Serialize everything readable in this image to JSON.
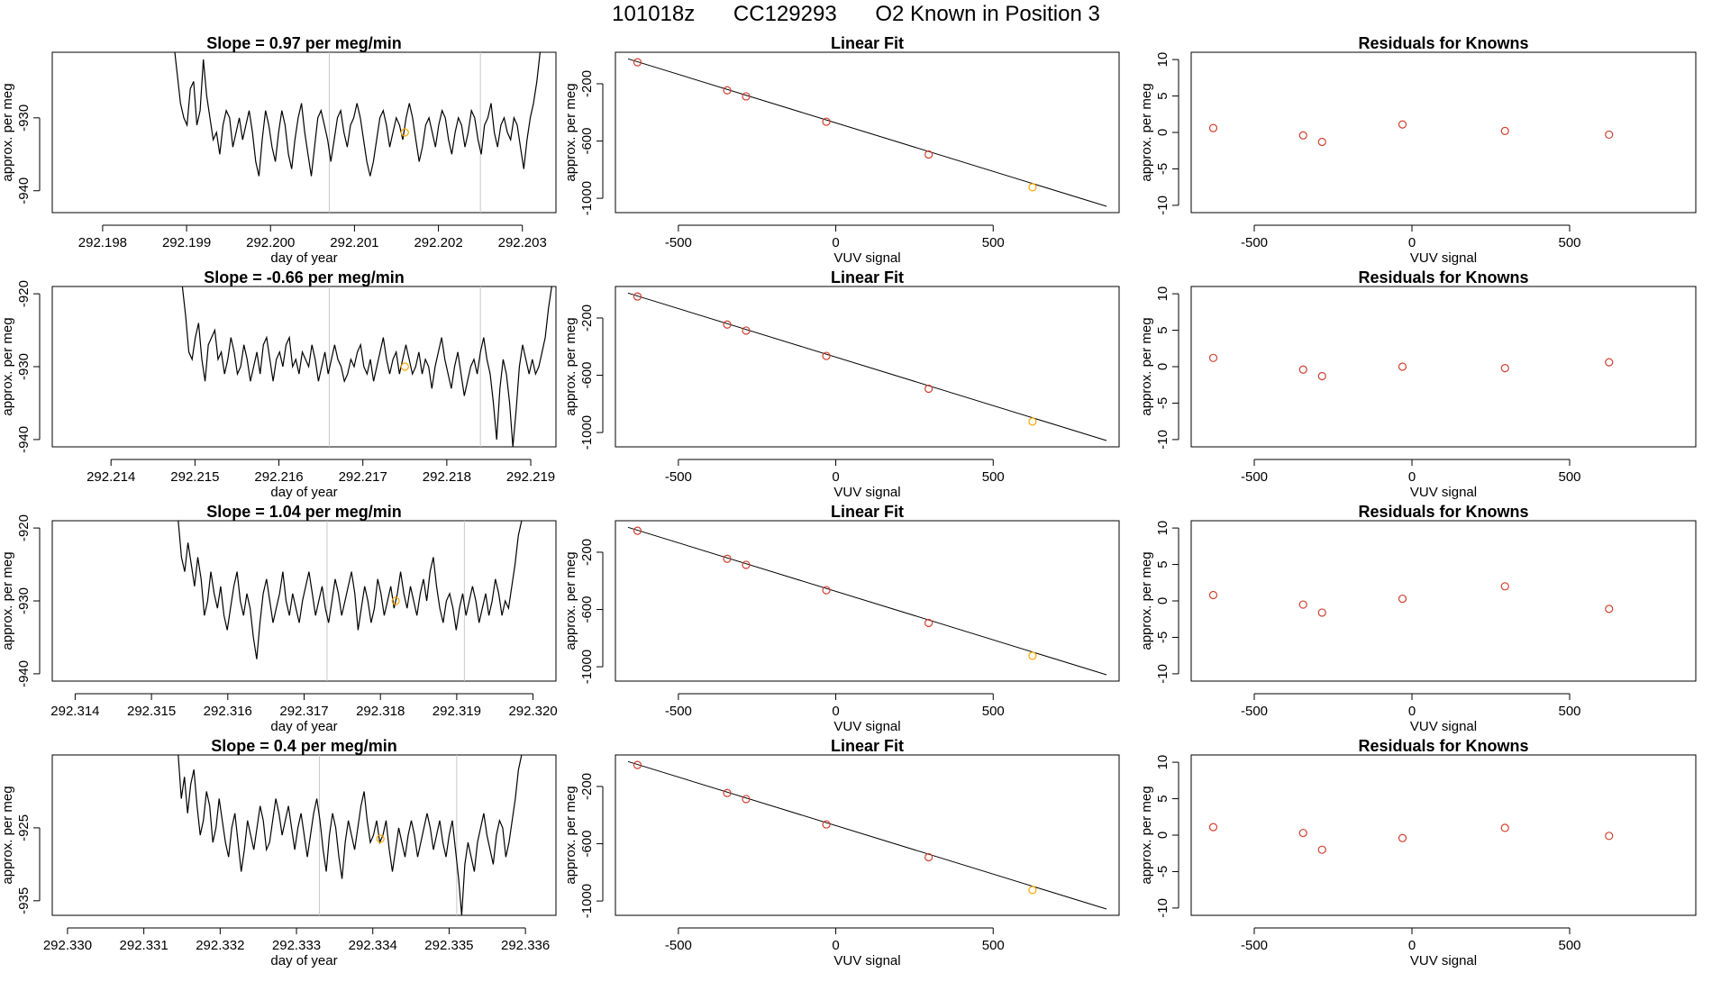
{
  "header": {
    "part1": "101018z",
    "part2": "CC129293",
    "part3": "O2 Known in Position  3"
  },
  "colors": {
    "trace": "#000000",
    "grid": "#c8c8c8",
    "highlight": "#ffa500",
    "point": "#d0402f",
    "axis": "#000000"
  },
  "chart_data": [
    {
      "type": "line",
      "panel": "timeseries",
      "row": 0,
      "title": "Slope =  0.97  per meg/min",
      "xlabel": "day of year",
      "ylabel": "approx. per meg",
      "xlim": [
        292.1974,
        292.2034
      ],
      "ylim": [
        -943,
        -921
      ],
      "xticks": [
        "292.198",
        "292.199",
        "292.200",
        "292.201",
        "292.202",
        "292.203"
      ],
      "xtick_values": [
        292.198,
        292.199,
        292.2,
        292.201,
        292.202,
        292.203
      ],
      "yticks": [
        "-930",
        "-940"
      ],
      "ytick_values": [
        -930,
        -940
      ],
      "vlines": [
        292.2007,
        292.2025
      ],
      "highlight_point": {
        "x": 292.2016,
        "y": -932
      },
      "trace_x_start": 292.19885,
      "trace_x_end": 292.20325,
      "trace_y": [
        -920,
        -924,
        -928,
        -930,
        -931,
        -926,
        -925,
        -931,
        -929,
        -922,
        -927,
        -930,
        -933,
        -932,
        -935,
        -931,
        -929,
        -930,
        -934,
        -932,
        -930,
        -933,
        -931,
        -929,
        -932,
        -936,
        -938,
        -933,
        -929,
        -931,
        -934,
        -936,
        -932,
        -929,
        -931,
        -935,
        -937,
        -933,
        -930,
        -928,
        -932,
        -935,
        -938,
        -934,
        -930,
        -929,
        -931,
        -933,
        -936,
        -933,
        -930,
        -929,
        -932,
        -934,
        -931,
        -930,
        -928,
        -930,
        -933,
        -936,
        -938,
        -936,
        -933,
        -930,
        -929,
        -931,
        -934,
        -932,
        -930,
        -931,
        -933,
        -930,
        -928,
        -930,
        -933,
        -936,
        -934,
        -931,
        -930,
        -932,
        -934,
        -931,
        -929,
        -930,
        -933,
        -935,
        -932,
        -930,
        -931,
        -934,
        -932,
        -929,
        -930,
        -933,
        -935,
        -931,
        -930,
        -928,
        -932,
        -934,
        -931,
        -930,
        -932,
        -933,
        -930,
        -931,
        -934,
        -937,
        -933,
        -930,
        -928,
        -925,
        -921,
        -920
      ]
    },
    {
      "type": "scatter",
      "panel": "fit",
      "row": 0,
      "title": "Linear Fit",
      "xlabel": "VUV signal",
      "ylabel": "approx. per meg",
      "xlim": [
        -700,
        900
      ],
      "ylim": [
        -1100,
        20
      ],
      "xticks": [
        "-500",
        "0",
        "500"
      ],
      "xtick_values": [
        -500,
        0,
        500
      ],
      "yticks": [
        "-200",
        "-600",
        "-1000"
      ],
      "ytick_values": [
        -200,
        -600,
        -1000
      ],
      "line": {
        "x": [
          -660,
          860
        ],
        "y": [
          -26,
          -1056
        ]
      },
      "points": [
        {
          "x": -630,
          "y": -50
        },
        {
          "x": -345,
          "y": -246
        },
        {
          "x": -285,
          "y": -288
        },
        {
          "x": -30,
          "y": -465
        },
        {
          "x": 295,
          "y": -694
        },
        {
          "x": 625,
          "y": -923,
          "highlight": true
        }
      ]
    },
    {
      "type": "scatter",
      "panel": "residuals",
      "row": 0,
      "title": "Residuals for Knowns",
      "xlabel": "VUV signal",
      "ylabel": "approx. per meg",
      "xlim": [
        -700,
        900
      ],
      "ylim": [
        -11,
        11
      ],
      "xticks": [
        "-500",
        "0",
        "500"
      ],
      "xtick_values": [
        -500,
        0,
        500
      ],
      "yticks": [
        "10",
        "5",
        "0",
        "-5",
        "-10"
      ],
      "ytick_values": [
        10,
        5,
        0,
        -5,
        -10
      ],
      "points": [
        {
          "x": -630,
          "y": 0.6
        },
        {
          "x": -345,
          "y": -0.4
        },
        {
          "x": -285,
          "y": -1.3
        },
        {
          "x": -30,
          "y": 1.1
        },
        {
          "x": 295,
          "y": 0.2
        },
        {
          "x": 625,
          "y": -0.3
        }
      ]
    },
    {
      "type": "line",
      "panel": "timeseries",
      "row": 1,
      "title": "Slope =  -0.66  per meg/min",
      "xlabel": "day of year",
      "ylabel": "approx. per meg",
      "xlim": [
        292.2133,
        292.2193
      ],
      "ylim": [
        -941,
        -919
      ],
      "xticks": [
        "292.214",
        "292.215",
        "292.216",
        "292.217",
        "292.218",
        "292.219"
      ],
      "xtick_values": [
        292.214,
        292.215,
        292.216,
        292.217,
        292.218,
        292.219
      ],
      "yticks": [
        "-920",
        "-930",
        "-940"
      ],
      "ytick_values": [
        -920,
        -930,
        -940
      ],
      "vlines": [
        292.2166,
        292.2184
      ],
      "highlight_point": {
        "x": 292.2175,
        "y": -930
      },
      "trace_x_start": 292.21485,
      "trace_x_end": 292.21925,
      "trace_y": [
        -919,
        -923,
        -928,
        -929,
        -926,
        -924,
        -929,
        -932,
        -927,
        -926,
        -925,
        -929,
        -928,
        -931,
        -929,
        -926,
        -928,
        -931,
        -930,
        -927,
        -929,
        -932,
        -930,
        -928,
        -931,
        -927,
        -926,
        -929,
        -932,
        -929,
        -928,
        -930,
        -927,
        -926,
        -930,
        -929,
        -931,
        -928,
        -929,
        -930,
        -927,
        -929,
        -932,
        -930,
        -928,
        -931,
        -929,
        -927,
        -929,
        -930,
        -932,
        -931,
        -929,
        -930,
        -928,
        -927,
        -930,
        -931,
        -929,
        -932,
        -930,
        -928,
        -926,
        -929,
        -931,
        -929,
        -928,
        -931,
        -929,
        -927,
        -929,
        -931,
        -930,
        -928,
        -931,
        -929,
        -930,
        -933,
        -930,
        -928,
        -926,
        -929,
        -931,
        -933,
        -930,
        -928,
        -931,
        -934,
        -932,
        -930,
        -929,
        -931,
        -928,
        -926,
        -929,
        -931,
        -935,
        -940,
        -933,
        -929,
        -931,
        -935,
        -941,
        -936,
        -930,
        -927,
        -929,
        -931,
        -929,
        -931,
        -930,
        -928,
        -926,
        -922,
        -919
      ]
    },
    {
      "type": "scatter",
      "panel": "fit",
      "row": 1,
      "title": "Linear Fit",
      "xlabel": "VUV signal",
      "ylabel": "approx. per meg",
      "xlim": [
        -700,
        900
      ],
      "ylim": [
        -1100,
        20
      ],
      "xticks": [
        "-500",
        "0",
        "500"
      ],
      "xtick_values": [
        -500,
        0,
        500
      ],
      "yticks": [
        "-200",
        "-600",
        "-1000"
      ],
      "ytick_values": [
        -200,
        -600,
        -1000
      ],
      "line": {
        "x": [
          -660,
          860
        ],
        "y": [
          -26,
          -1056
        ]
      },
      "points": [
        {
          "x": -630,
          "y": -50
        },
        {
          "x": -345,
          "y": -246
        },
        {
          "x": -285,
          "y": -288
        },
        {
          "x": -30,
          "y": -465
        },
        {
          "x": 295,
          "y": -694
        },
        {
          "x": 625,
          "y": -923,
          "highlight": true
        }
      ]
    },
    {
      "type": "scatter",
      "panel": "residuals",
      "row": 1,
      "title": "Residuals for Knowns",
      "xlabel": "VUV signal",
      "ylabel": "approx. per meg",
      "xlim": [
        -700,
        900
      ],
      "ylim": [
        -11,
        11
      ],
      "xticks": [
        "-500",
        "0",
        "500"
      ],
      "xtick_values": [
        -500,
        0,
        500
      ],
      "yticks": [
        "10",
        "5",
        "0",
        "-5",
        "-10"
      ],
      "ytick_values": [
        10,
        5,
        0,
        -5,
        -10
      ],
      "points": [
        {
          "x": -630,
          "y": 1.2
        },
        {
          "x": -345,
          "y": -0.4
        },
        {
          "x": -285,
          "y": -1.3
        },
        {
          "x": -30,
          "y": 0.0
        },
        {
          "x": 295,
          "y": -0.2
        },
        {
          "x": 625,
          "y": 0.6
        }
      ]
    },
    {
      "type": "line",
      "panel": "timeseries",
      "row": 2,
      "title": "Slope =  1.04  per meg/min",
      "xlabel": "day of year",
      "ylabel": "approx. per meg",
      "xlim": [
        292.3137,
        292.3203
      ],
      "ylim": [
        -941,
        -919
      ],
      "xticks": [
        "292.314",
        "292.315",
        "292.316",
        "292.317",
        "292.318",
        "292.319",
        "292.320"
      ],
      "xtick_values": [
        292.314,
        292.315,
        292.316,
        292.317,
        292.318,
        292.319,
        292.32
      ],
      "yticks": [
        "-920",
        "-930",
        "-940"
      ],
      "ytick_values": [
        -920,
        -930,
        -940
      ],
      "vlines": [
        292.3173,
        292.3191
      ],
      "highlight_point": {
        "x": 292.3182,
        "y": -930
      },
      "trace_x_start": 292.31535,
      "trace_x_end": 292.31985,
      "trace_y": [
        -919,
        -924,
        -926,
        -922,
        -925,
        -928,
        -924,
        -927,
        -932,
        -930,
        -926,
        -929,
        -931,
        -928,
        -932,
        -934,
        -931,
        -928,
        -926,
        -930,
        -932,
        -929,
        -931,
        -935,
        -938,
        -933,
        -929,
        -927,
        -930,
        -933,
        -931,
        -929,
        -926,
        -930,
        -932,
        -929,
        -931,
        -933,
        -930,
        -928,
        -926,
        -929,
        -932,
        -930,
        -928,
        -931,
        -933,
        -930,
        -927,
        -929,
        -932,
        -930,
        -928,
        -926,
        -929,
        -934,
        -931,
        -928,
        -930,
        -933,
        -931,
        -927,
        -929,
        -932,
        -930,
        -928,
        -931,
        -929,
        -926,
        -929,
        -931,
        -928,
        -930,
        -932,
        -929,
        -927,
        -930,
        -926,
        -924,
        -928,
        -931,
        -933,
        -930,
        -929,
        -931,
        -934,
        -931,
        -929,
        -932,
        -930,
        -928,
        -930,
        -933,
        -931,
        -929,
        -932,
        -930,
        -927,
        -929,
        -932,
        -930,
        -931,
        -928,
        -925,
        -921,
        -919
      ]
    },
    {
      "type": "scatter",
      "panel": "fit",
      "row": 2,
      "title": "Linear Fit",
      "xlabel": "VUV signal",
      "ylabel": "approx. per meg",
      "xlim": [
        -700,
        900
      ],
      "ylim": [
        -1100,
        20
      ],
      "xticks": [
        "-500",
        "0",
        "500"
      ],
      "xtick_values": [
        -500,
        0,
        500
      ],
      "yticks": [
        "-200",
        "-600",
        "-1000"
      ],
      "ytick_values": [
        -200,
        -600,
        -1000
      ],
      "line": {
        "x": [
          -660,
          860
        ],
        "y": [
          -26,
          -1056
        ]
      },
      "points": [
        {
          "x": -630,
          "y": -50
        },
        {
          "x": -345,
          "y": -246
        },
        {
          "x": -285,
          "y": -288
        },
        {
          "x": -30,
          "y": -465
        },
        {
          "x": 295,
          "y": -694
        },
        {
          "x": 625,
          "y": -923,
          "highlight": true
        }
      ]
    },
    {
      "type": "scatter",
      "panel": "residuals",
      "row": 2,
      "title": "Residuals for Knowns",
      "xlabel": "VUV signal",
      "ylabel": "approx. per meg",
      "xlim": [
        -700,
        900
      ],
      "ylim": [
        -11,
        11
      ],
      "xticks": [
        "-500",
        "0",
        "500"
      ],
      "xtick_values": [
        -500,
        0,
        500
      ],
      "yticks": [
        "10",
        "5",
        "0",
        "-5",
        "-10"
      ],
      "ytick_values": [
        10,
        5,
        0,
        -5,
        -10
      ],
      "points": [
        {
          "x": -630,
          "y": 0.8
        },
        {
          "x": -345,
          "y": -0.5
        },
        {
          "x": -285,
          "y": -1.6
        },
        {
          "x": -30,
          "y": 0.3
        },
        {
          "x": 295,
          "y": 2.0
        },
        {
          "x": 625,
          "y": -1.1
        }
      ]
    },
    {
      "type": "line",
      "panel": "timeseries",
      "row": 3,
      "title": "Slope =  0.4  per meg/min",
      "xlabel": "day of year",
      "ylabel": "approx. per meg",
      "xlim": [
        292.3298,
        292.3364
      ],
      "ylim": [
        -937,
        -915
      ],
      "xticks": [
        "292.330",
        "292.331",
        "292.332",
        "292.333",
        "292.334",
        "292.335",
        "292.336"
      ],
      "xtick_values": [
        292.33,
        292.331,
        292.332,
        292.333,
        292.334,
        292.335,
        292.336
      ],
      "yticks": [
        "-925",
        "-935"
      ],
      "ytick_values": [
        -925,
        -935
      ],
      "vlines": [
        292.3333,
        292.3351
      ],
      "highlight_point": {
        "x": 292.3341,
        "y": -926.5
      },
      "trace_x_start": 292.33145,
      "trace_x_end": 292.33595,
      "trace_y": [
        -915,
        -921,
        -918,
        -923,
        -919,
        -917,
        -922,
        -926,
        -924,
        -920,
        -922,
        -927,
        -925,
        -921,
        -924,
        -927,
        -929,
        -925,
        -923,
        -927,
        -931,
        -928,
        -924,
        -926,
        -928,
        -925,
        -922,
        -924,
        -928,
        -927,
        -924,
        -921,
        -923,
        -926,
        -924,
        -922,
        -925,
        -928,
        -925,
        -923,
        -926,
        -929,
        -926,
        -923,
        -921,
        -924,
        -928,
        -931,
        -926,
        -923,
        -925,
        -929,
        -932,
        -927,
        -924,
        -926,
        -928,
        -925,
        -922,
        -920,
        -924,
        -927,
        -926,
        -924,
        -927,
        -926,
        -924,
        -928,
        -931,
        -928,
        -925,
        -927,
        -929,
        -926,
        -924,
        -926,
        -929,
        -927,
        -925,
        -923,
        -925,
        -928,
        -926,
        -924,
        -927,
        -929,
        -926,
        -924,
        -928,
        -932,
        -937,
        -930,
        -927,
        -929,
        -931,
        -927,
        -925,
        -923,
        -926,
        -928,
        -930,
        -926,
        -924,
        -925,
        -929,
        -927,
        -924,
        -921,
        -917,
        -915
      ]
    },
    {
      "type": "scatter",
      "panel": "fit",
      "row": 3,
      "title": "Linear Fit",
      "xlabel": "VUV signal",
      "ylabel": "approx. per meg",
      "xlim": [
        -700,
        900
      ],
      "ylim": [
        -1100,
        20
      ],
      "xticks": [
        "-500",
        "0",
        "500"
      ],
      "xtick_values": [
        -500,
        0,
        500
      ],
      "yticks": [
        "-200",
        "-600",
        "-1000"
      ],
      "ytick_values": [
        -200,
        -600,
        -1000
      ],
      "line": {
        "x": [
          -660,
          860
        ],
        "y": [
          -26,
          -1056
        ]
      },
      "points": [
        {
          "x": -630,
          "y": -50
        },
        {
          "x": -345,
          "y": -246
        },
        {
          "x": -285,
          "y": -288
        },
        {
          "x": -30,
          "y": -465
        },
        {
          "x": 295,
          "y": -694
        },
        {
          "x": 625,
          "y": -923,
          "highlight": true
        }
      ]
    },
    {
      "type": "scatter",
      "panel": "residuals",
      "row": 3,
      "title": "Residuals for Knowns",
      "xlabel": "VUV signal",
      "ylabel": "approx. per meg",
      "xlim": [
        -700,
        900
      ],
      "ylim": [
        -11,
        11
      ],
      "xticks": [
        "-500",
        "0",
        "500"
      ],
      "xtick_values": [
        -500,
        0,
        500
      ],
      "yticks": [
        "10",
        "5",
        "0",
        "-5",
        "-10"
      ],
      "ytick_values": [
        10,
        5,
        0,
        -5,
        -10
      ],
      "points": [
        {
          "x": -630,
          "y": 1.1
        },
        {
          "x": -345,
          "y": 0.3
        },
        {
          "x": -285,
          "y": -2.0
        },
        {
          "x": -30,
          "y": -0.4
        },
        {
          "x": 295,
          "y": 1.0
        },
        {
          "x": 625,
          "y": -0.1
        }
      ]
    }
  ]
}
